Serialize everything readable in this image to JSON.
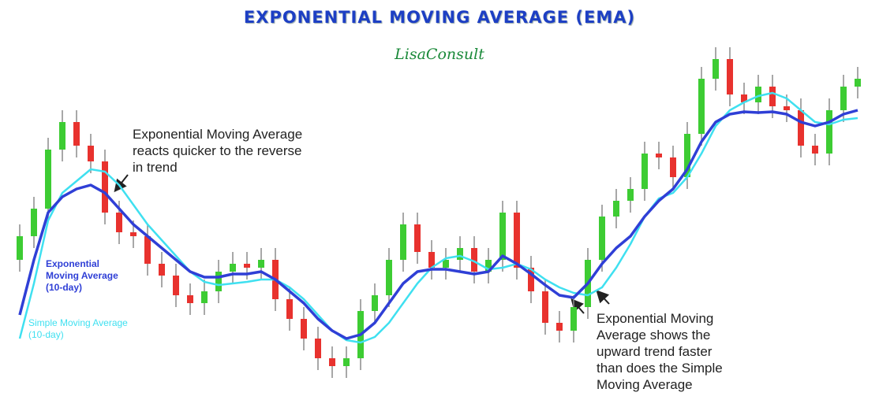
{
  "chart_data": {
    "type": "candlestick",
    "title": "EXPONENTIAL MOVING AVERAGE (EMA)",
    "subtitle": "LisaConsult",
    "ylim": [
      0,
      46
    ],
    "up_color": "#3dcc33",
    "down_color": "#e8322e",
    "open": [
      17,
      20,
      23.5,
      31,
      34.5,
      31.5,
      29.5,
      23,
      20.5,
      20,
      16.5,
      15,
      12.5,
      11.5,
      13,
      15.5,
      16.5,
      16,
      17,
      12,
      9.5,
      7,
      4.5,
      3.5,
      4.5,
      10.5,
      12.5,
      17,
      21.5,
      18,
      16,
      17,
      18.5,
      15.5,
      17,
      23,
      16,
      13,
      9,
      8,
      11,
      17,
      22.5,
      24.5,
      26,
      30.5,
      30,
      27.5,
      33,
      40,
      42.5,
      38,
      37,
      39,
      36.5,
      36,
      31.5,
      30.5,
      36,
      39
    ],
    "high": [
      21.5,
      25,
      32.5,
      36,
      36,
      33,
      31,
      24.5,
      22,
      21.5,
      18,
      16.5,
      14,
      14.5,
      17,
      18,
      18,
      18.5,
      18.5,
      13.5,
      11,
      8.5,
      6,
      6,
      12,
      14,
      18.5,
      23,
      23,
      19.5,
      18.5,
      20,
      20,
      18.5,
      24.5,
      24.5,
      17.5,
      14.5,
      10.5,
      12.5,
      18.5,
      24,
      26,
      27.5,
      32,
      32,
      31.5,
      34.5,
      41.5,
      44,
      44,
      39.5,
      40.5,
      40.5,
      38,
      37.5,
      33,
      37.5,
      40.5,
      41.5
    ],
    "low": [
      15.5,
      18.5,
      22,
      29.5,
      30,
      28,
      21.5,
      19,
      18.5,
      15,
      13.5,
      11,
      10,
      10,
      11.5,
      14,
      14.5,
      14.5,
      10.5,
      8,
      5.5,
      3,
      2,
      2,
      3,
      9,
      11,
      15.5,
      16.5,
      14.5,
      14.5,
      15.5,
      14,
      14,
      15.5,
      14.5,
      11.5,
      7.5,
      6.5,
      6.5,
      9.5,
      15.5,
      21,
      23,
      24.5,
      28.5,
      26,
      26,
      31.5,
      38.5,
      36.5,
      35.5,
      35.5,
      35,
      34.5,
      30,
      29,
      29,
      34.5,
      37.5
    ],
    "close": [
      20,
      23.5,
      31,
      34.5,
      31.5,
      29.5,
      23,
      20.5,
      20,
      16.5,
      15,
      12.5,
      11.5,
      13,
      15.5,
      16.5,
      16,
      17,
      12,
      9.5,
      7,
      4.5,
      3.5,
      4.5,
      10.5,
      12.5,
      17,
      21.5,
      18,
      16,
      17,
      18.5,
      15.5,
      17,
      23,
      16,
      13,
      9,
      8,
      11,
      17,
      22.5,
      24.5,
      26,
      30.5,
      30,
      27.5,
      33,
      40,
      42.5,
      38,
      37,
      39,
      36.5,
      36,
      31.5,
      30.5,
      36,
      39,
      40
    ],
    "series": [
      {
        "name": "Exponential Moving Average (10-day)",
        "color": "#2f3fd6",
        "values": [
          10,
          17,
          23,
          25,
          26,
          26.5,
          25.5,
          23.5,
          21.5,
          20,
          18.5,
          17,
          15.5,
          14.8,
          14.8,
          15.2,
          15.2,
          15.5,
          14.5,
          13,
          11.5,
          9.5,
          8,
          7,
          7.5,
          9,
          11.5,
          14,
          15.5,
          15.8,
          15.8,
          15.5,
          15.2,
          15.5,
          17.5,
          16.5,
          15.2,
          13.8,
          12.5,
          12.2,
          14,
          16.5,
          18.5,
          20,
          22.5,
          24.5,
          26,
          28.5,
          32,
          34.5,
          35.5,
          35.8,
          35.7,
          35.8,
          35.5,
          34.5,
          34,
          34.5,
          35.5,
          36
        ]
      },
      {
        "name": "Simple Moving Average (10-day)",
        "color": "#3fe0f0",
        "values": [
          7,
          14,
          22,
          25.5,
          27,
          28.5,
          28.2,
          26.5,
          24,
          21.5,
          19.5,
          17.5,
          15.5,
          14.2,
          13.8,
          14,
          14.2,
          14.5,
          14.5,
          13.5,
          12,
          10,
          8,
          6.8,
          6.5,
          7.2,
          9,
          11.5,
          14,
          16,
          17.2,
          17.5,
          16.8,
          15.8,
          16,
          16.5,
          15.8,
          14.5,
          13.5,
          12.8,
          12.5,
          13.5,
          16,
          19,
          22.5,
          24.8,
          25.5,
          27.5,
          30.5,
          34,
          36,
          37,
          37.8,
          38.2,
          37.5,
          36,
          34.5,
          34.2,
          34.8,
          35
        ]
      }
    ],
    "annotations": [
      {
        "lines": [
          "Exponential Moving Average",
          "reacts quicker to the reverse",
          "in trend"
        ]
      },
      {
        "lines": [
          "Exponential Moving",
          "Average shows the",
          "upward trend faster",
          "than does the Simple",
          "Moving Average"
        ]
      }
    ]
  }
}
